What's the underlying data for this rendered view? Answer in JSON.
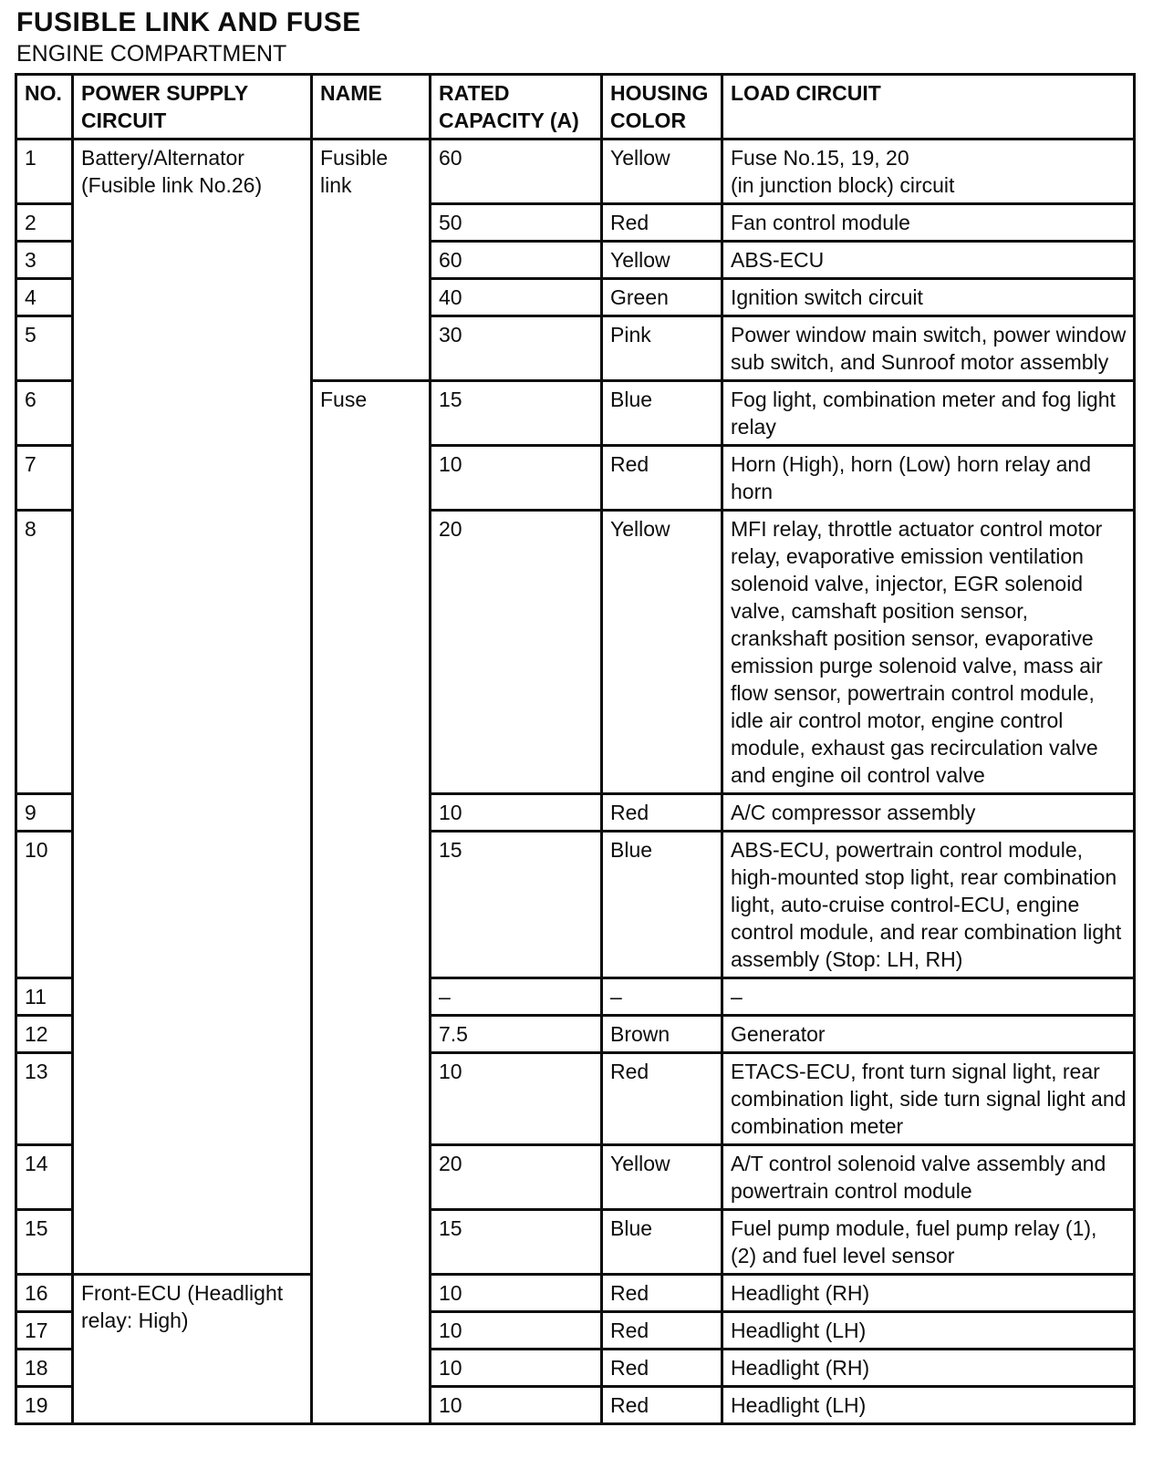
{
  "page": {
    "title": "FUSIBLE LINK AND FUSE",
    "subtitle": "ENGINE COMPARTMENT"
  },
  "table": {
    "headers": {
      "no": "NO.",
      "power": "POWER SUPPLY CIRCUIT",
      "name": "NAME",
      "capacity": "RATED CAPACITY (A)",
      "color": "HOUSING COLOR",
      "load": "LOAD CIRCUIT"
    },
    "rows": [
      {
        "no": "1",
        "power": "Battery/Alternator (Fusible link No.26)",
        "power_rowspan": 15,
        "name": "Fusible link",
        "name_rowspan": 5,
        "capacity": "60",
        "color": "Yellow",
        "load": "Fuse No.15, 19, 20\n(in junction block) circuit"
      },
      {
        "no": "2",
        "capacity": "50",
        "color": "Red",
        "load": "Fan control module"
      },
      {
        "no": "3",
        "capacity": "60",
        "color": "Yellow",
        "load": "ABS-ECU"
      },
      {
        "no": "4",
        "capacity": "40",
        "color": "Green",
        "load": "Ignition switch circuit"
      },
      {
        "no": "5",
        "capacity": "30",
        "color": "Pink",
        "load": "Power window main switch, power window sub switch, and Sunroof motor assembly"
      },
      {
        "no": "6",
        "name": "Fuse",
        "name_rowspan": 14,
        "capacity": "15",
        "color": "Blue",
        "load": "Fog light, combination meter and fog light relay"
      },
      {
        "no": "7",
        "capacity": "10",
        "color": "Red",
        "load": "Horn (High), horn (Low) horn relay and horn"
      },
      {
        "no": "8",
        "capacity": "20",
        "color": "Yellow",
        "load": "MFI relay, throttle actuator control motor relay, evaporative emission ventilation solenoid valve, injector, EGR solenoid valve, camshaft position sensor, crankshaft position sensor, evaporative emission purge solenoid valve, mass air flow sensor, powertrain control module, idle air control motor, engine control module, exhaust gas recirculation valve and engine oil control valve"
      },
      {
        "no": "9",
        "capacity": "10",
        "color": "Red",
        "load": "A/C compressor assembly"
      },
      {
        "no": "10",
        "capacity": "15",
        "color": "Blue",
        "load": "ABS-ECU, powertrain control module, high-mounted stop light, rear combination light, auto-cruise control-ECU, engine control module, and rear combination light assembly (Stop: LH, RH)"
      },
      {
        "no": "11",
        "capacity": "–",
        "color": "–",
        "load": "–"
      },
      {
        "no": "12",
        "capacity": "7.5",
        "color": "Brown",
        "load": "Generator"
      },
      {
        "no": "13",
        "capacity": "10",
        "color": "Red",
        "load": "ETACS-ECU, front turn signal light, rear combination light, side turn signal light and combination meter"
      },
      {
        "no": "14",
        "capacity": "20",
        "color": "Yellow",
        "load": "A/T control solenoid valve assembly and powertrain control module"
      },
      {
        "no": "15",
        "capacity": "15",
        "color": "Blue",
        "load": "Fuel pump module, fuel pump relay (1), (2) and fuel level sensor"
      },
      {
        "no": "16",
        "power": "Front-ECU (Headlight relay: High)",
        "power_rowspan": 4,
        "capacity": "10",
        "color": "Red",
        "load": "Headlight (RH)"
      },
      {
        "no": "17",
        "capacity": "10",
        "color": "Red",
        "load": "Headlight (LH)"
      },
      {
        "no": "18",
        "capacity": "10",
        "color": "Red",
        "load": "Headlight (RH)"
      },
      {
        "no": "19",
        "capacity": "10",
        "color": "Red",
        "load": "Headlight (LH)"
      }
    ]
  }
}
